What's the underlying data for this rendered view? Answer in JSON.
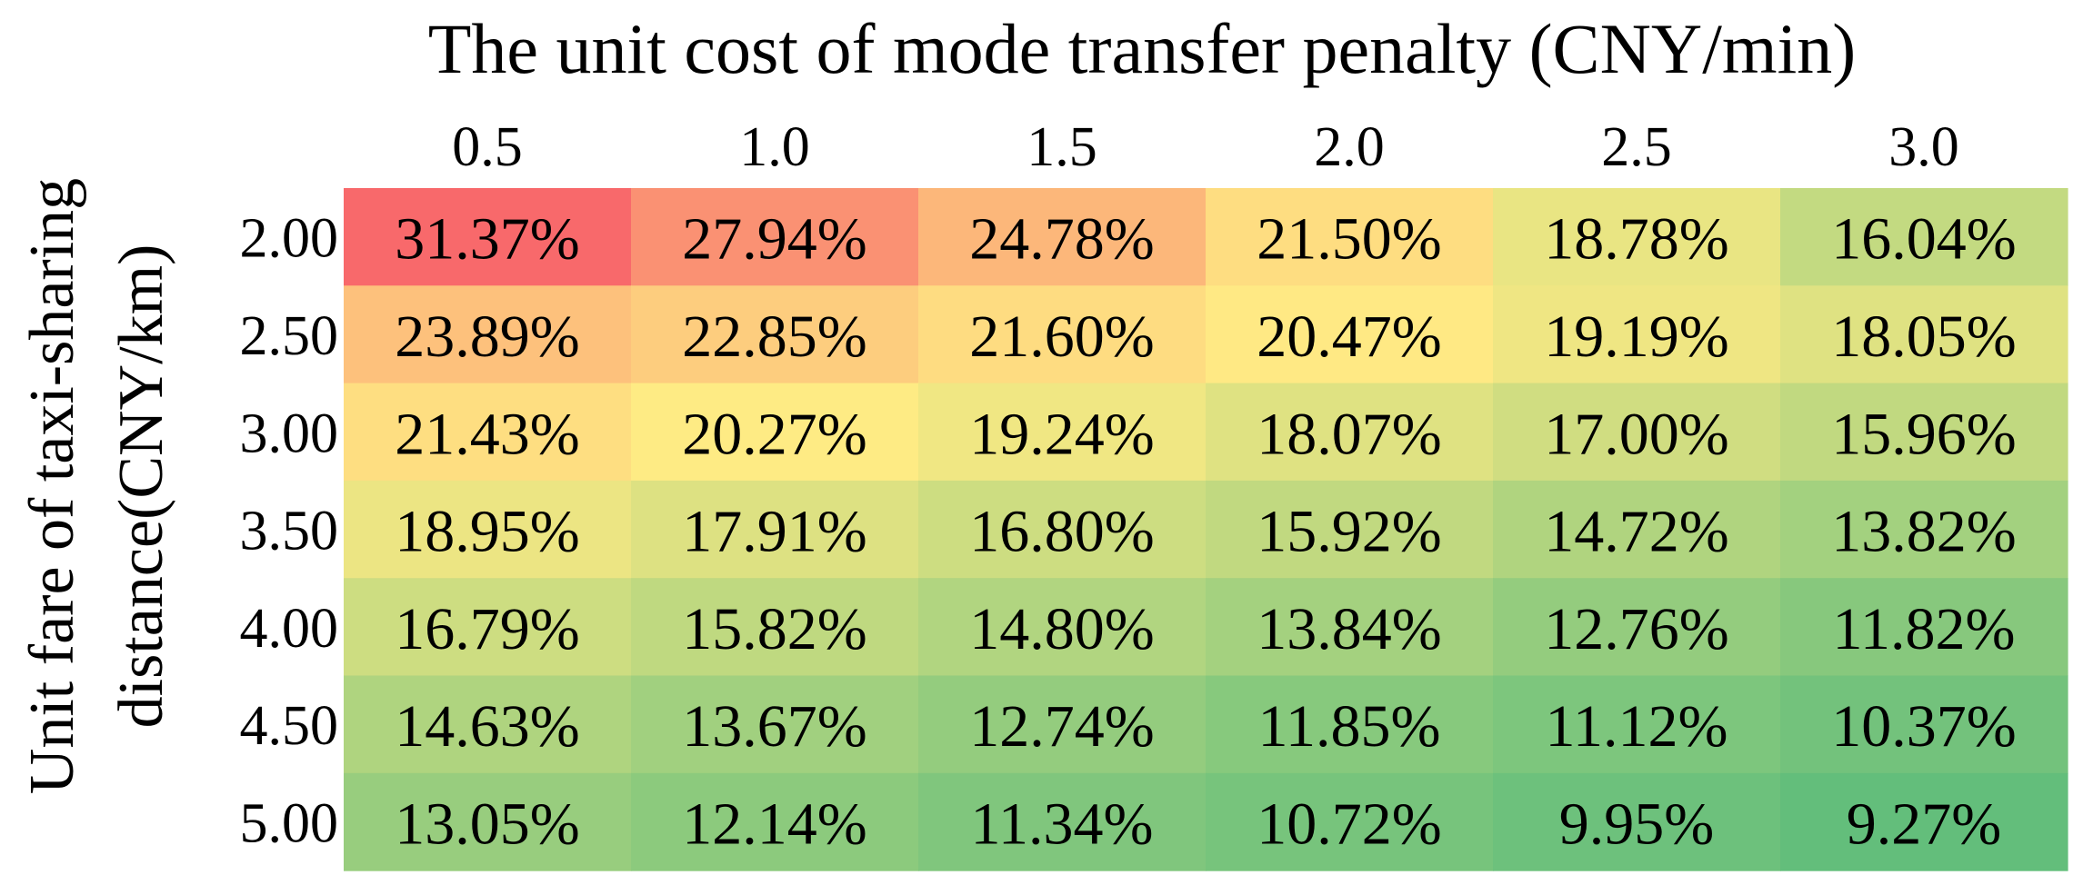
{
  "chart_data": {
    "type": "heatmap",
    "title": "",
    "xlabel": "The unit cost of  mode transfer penalty (CNY/min)",
    "ylabel": [
      "Unit fare of taxi-sharing",
      "distance(CNY/km)"
    ],
    "x": [
      "0.5",
      "1.0",
      "1.5",
      "2.0",
      "2.5",
      "3.0"
    ],
    "y": [
      "2.00",
      "2.50",
      "3.00",
      "3.50",
      "4.00",
      "4.50",
      "5.00"
    ],
    "values": [
      [
        31.37,
        27.94,
        24.78,
        21.5,
        18.78,
        16.04
      ],
      [
        23.89,
        22.85,
        21.6,
        20.47,
        19.19,
        18.05
      ],
      [
        21.43,
        20.27,
        19.24,
        18.07,
        17.0,
        15.96
      ],
      [
        18.95,
        17.91,
        16.8,
        15.92,
        14.72,
        13.82
      ],
      [
        16.79,
        15.82,
        14.8,
        13.84,
        12.76,
        11.82
      ],
      [
        14.63,
        13.67,
        12.74,
        11.85,
        11.12,
        10.37
      ],
      [
        13.05,
        12.14,
        11.34,
        10.72,
        9.95,
        9.27
      ]
    ],
    "cell_labels": [
      [
        "31.37%",
        "27.94%",
        "24.78%",
        "21.50%",
        "18.78%",
        "16.04%"
      ],
      [
        "23.89%",
        "22.85%",
        "21.60%",
        "20.47%",
        "19.19%",
        "18.05%"
      ],
      [
        "21.43%",
        "20.27%",
        "19.24%",
        "18.07%",
        "17.00%",
        "15.96%"
      ],
      [
        "18.95%",
        "17.91%",
        "16.80%",
        "15.92%",
        "14.72%",
        "13.82%"
      ],
      [
        "16.79%",
        "15.82%",
        "14.80%",
        "13.84%",
        "12.76%",
        "11.82%"
      ],
      [
        "14.63%",
        "13.67%",
        "12.74%",
        "11.85%",
        "11.12%",
        "10.37%"
      ],
      [
        "13.05%",
        "12.14%",
        "11.34%",
        "10.72%",
        "9.95%",
        "9.27%"
      ]
    ],
    "colorscale": {
      "low": "#63be7b",
      "mid": "#ffeb84",
      "high": "#f8696b"
    },
    "grid": false,
    "legend": "none"
  }
}
